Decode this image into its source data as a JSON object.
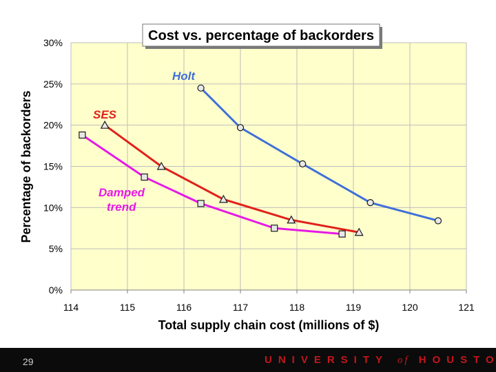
{
  "chart_data": {
    "type": "line",
    "title": "Cost vs. percentage of backorders",
    "xlabel": "Total supply chain cost (millions of $)",
    "ylabel": "Percentage of backorders",
    "xlim": [
      114,
      121
    ],
    "ylim": [
      0,
      30
    ],
    "x_ticks": [
      "114",
      "115",
      "116",
      "117",
      "118",
      "119",
      "120",
      "121"
    ],
    "y_ticks": [
      "0%",
      "5%",
      "10%",
      "15%",
      "20%",
      "25%",
      "30%"
    ],
    "grid": true,
    "series": [
      {
        "name": "Holt",
        "color": "#3f6fd8",
        "marker": "circle",
        "label_lines": [
          "Holt"
        ],
        "x": [
          116.3,
          117.0,
          118.1,
          119.3,
          120.5
        ],
        "y": [
          24.5,
          19.7,
          15.3,
          10.6,
          8.4
        ]
      },
      {
        "name": "SES",
        "color": "#e0211a",
        "marker": "triangle",
        "label_lines": [
          "SES"
        ],
        "x": [
          114.6,
          115.6,
          116.7,
          117.9,
          119.1
        ],
        "y": [
          20.0,
          15.0,
          11.0,
          8.5,
          7.0
        ]
      },
      {
        "name": "Damped trend",
        "color": "#e619e6",
        "marker": "square",
        "label_lines": [
          "Damped",
          "trend"
        ],
        "x": [
          114.2,
          115.3,
          116.3,
          117.6,
          118.8
        ],
        "y": [
          18.8,
          13.7,
          10.5,
          7.5,
          6.8
        ]
      }
    ]
  },
  "footer": {
    "slide_number": "29",
    "university_text": "UNIVERSITY",
    "of_text": "of",
    "houston_text": "HOUSTON"
  }
}
